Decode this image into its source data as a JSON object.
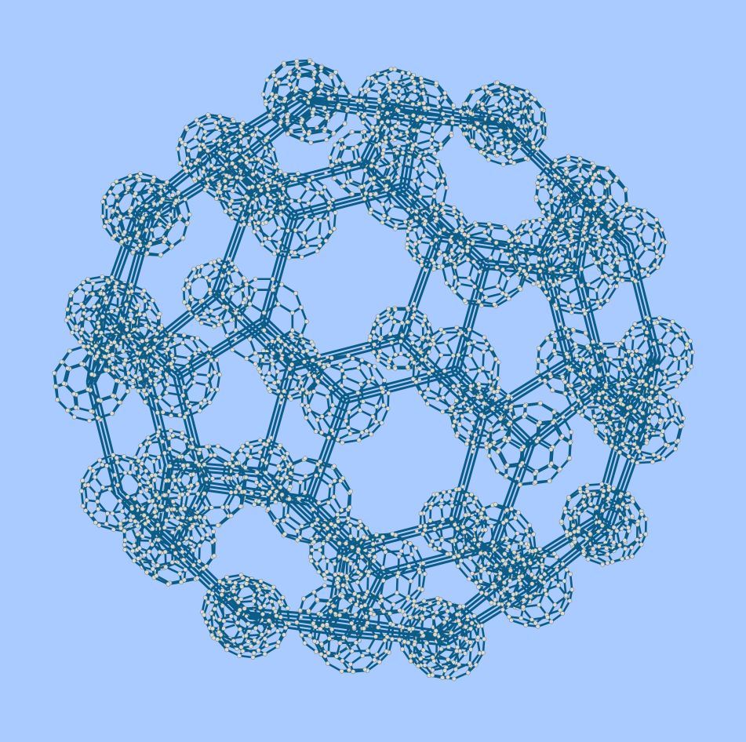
{
  "colors": {
    "background": "#a9cbff",
    "edge": "#0b5c86",
    "node_fill": "#d9dcd6",
    "node_stroke": "#7d8a86"
  },
  "graph": {
    "kind": "graph-of-clusters",
    "outer_layout": "truncated-icosahedron",
    "cluster_layout": "truncated-icosahedron",
    "cluster_count": 60,
    "nodes_per_cluster": 60,
    "rotation_deg": {
      "x": 18,
      "y": -24,
      "z": 8
    }
  }
}
